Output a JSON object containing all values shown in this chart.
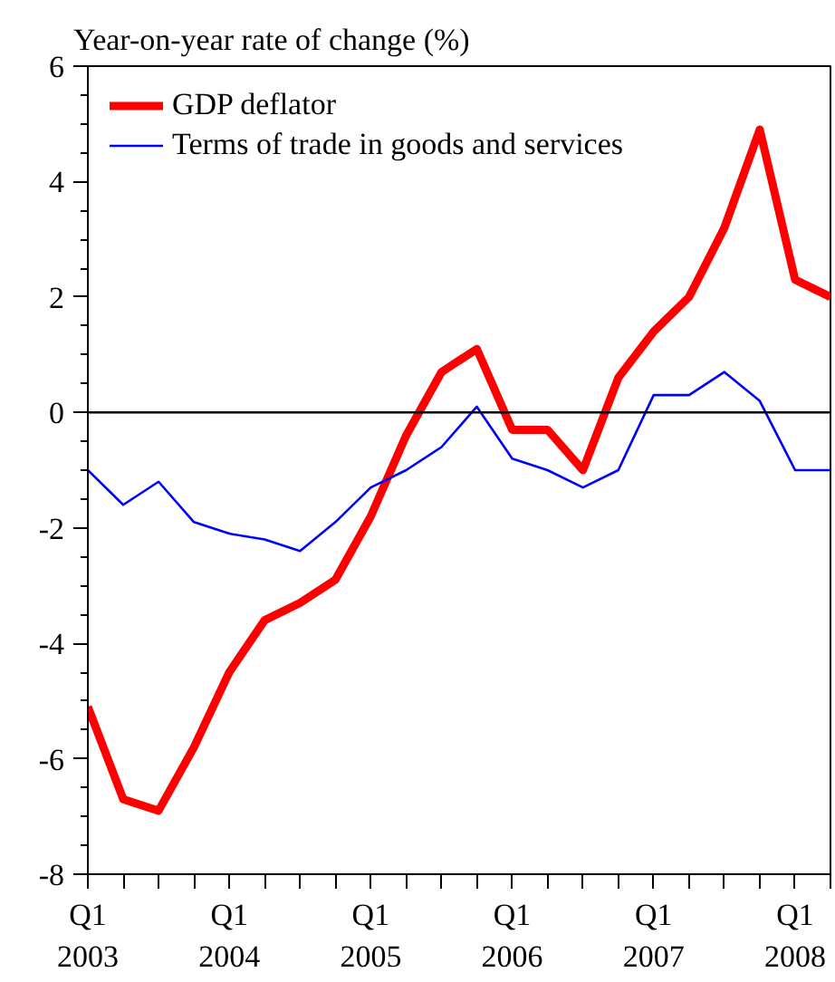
{
  "chart_data": {
    "type": "line",
    "ylabel": "Year-on-year rate of change (%)",
    "categories": [
      "Q1\n2003",
      null,
      null,
      null,
      "Q1\n2004",
      null,
      null,
      null,
      "Q1\n2005",
      null,
      null,
      null,
      "Q1\n2006",
      null,
      null,
      null,
      "Q1\n2007",
      null,
      null,
      null,
      "Q1\n2008",
      null
    ],
    "series": [
      {
        "name": "GDP deflator",
        "color": "#ff0000",
        "values": [
          -5.1,
          -6.7,
          -6.9,
          -5.8,
          -4.5,
          -3.6,
          -3.3,
          -2.9,
          -1.8,
          -0.4,
          0.7,
          1.1,
          -0.3,
          -0.3,
          -1.0,
          0.6,
          1.4,
          2.0,
          3.2,
          4.9,
          2.3,
          2.0
        ]
      },
      {
        "name": "Terms of trade in goods and services",
        "color": "#0000ff",
        "values": [
          -1.0,
          -1.6,
          -1.2,
          -1.9,
          -2.1,
          -2.2,
          -2.4,
          -1.9,
          -1.3,
          -1.0,
          -0.6,
          0.1,
          -0.8,
          -1.0,
          -1.3,
          -1.0,
          0.3,
          0.3,
          0.7,
          0.2,
          -1.0,
          -1.0
        ]
      }
    ],
    "ylim": [
      -8,
      6
    ],
    "yticks": [
      -8,
      -6,
      -4,
      -2,
      0,
      2,
      4,
      6
    ],
    "ref_lines": [
      {
        "axis": "y",
        "value": 0,
        "color": "#000000"
      }
    ],
    "grid": false,
    "legend": "top left",
    "line_style": "solid",
    "marker": "none"
  }
}
